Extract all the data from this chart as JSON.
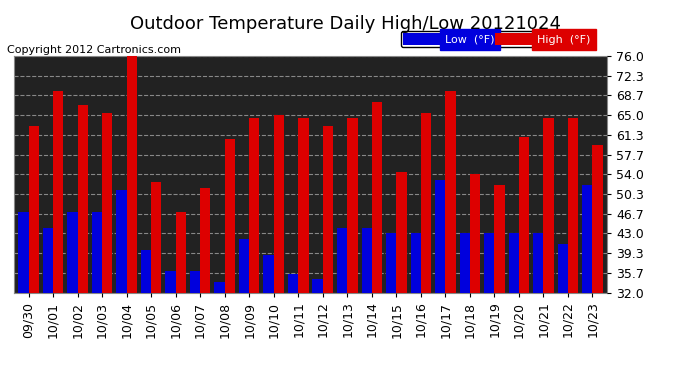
{
  "title": "Outdoor Temperature Daily High/Low 20121024",
  "copyright": "Copyright 2012 Cartronics.com",
  "legend_low": "Low  (°F)",
  "legend_high": "High  (°F)",
  "dates": [
    "09/30",
    "10/01",
    "10/02",
    "10/03",
    "10/04",
    "10/05",
    "10/06",
    "10/07",
    "10/08",
    "10/09",
    "10/10",
    "10/11",
    "10/12",
    "10/13",
    "10/14",
    "10/15",
    "10/16",
    "10/17",
    "10/18",
    "10/19",
    "10/20",
    "10/21",
    "10/22",
    "10/23"
  ],
  "lows": [
    47.0,
    44.0,
    47.0,
    47.0,
    51.0,
    40.0,
    36.0,
    36.0,
    34.0,
    42.0,
    39.0,
    35.5,
    34.5,
    44.0,
    44.0,
    43.0,
    43.0,
    53.0,
    43.0,
    43.0,
    43.0,
    43.0,
    41.0,
    52.0
  ],
  "highs": [
    63.0,
    69.5,
    67.0,
    65.5,
    76.5,
    52.5,
    47.0,
    51.5,
    60.5,
    64.5,
    65.0,
    64.5,
    63.0,
    64.5,
    67.5,
    54.5,
    65.5,
    69.5,
    54.0,
    52.0,
    61.0,
    64.5,
    64.5,
    59.5
  ],
  "low_color": "#0000dd",
  "high_color": "#dd0000",
  "bg_color": "#ffffff",
  "plot_bg_color": "#222222",
  "grid_color": "#888888",
  "ylim_min": 32.0,
  "ylim_max": 76.0,
  "yticks": [
    32.0,
    35.7,
    39.3,
    43.0,
    46.7,
    50.3,
    54.0,
    57.7,
    61.3,
    65.0,
    68.7,
    72.3,
    76.0
  ],
  "title_fontsize": 13,
  "copyright_fontsize": 8,
  "tick_fontsize": 9,
  "bar_width": 0.42
}
